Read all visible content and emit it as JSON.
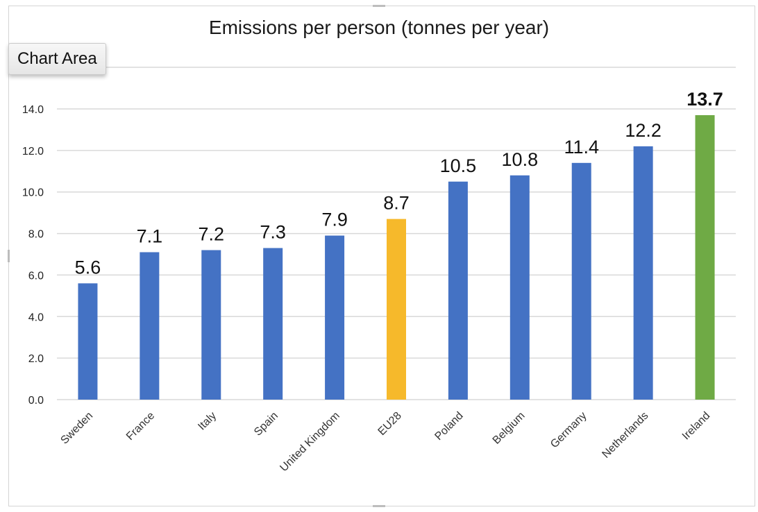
{
  "window": {
    "tooltip": "Chart Area"
  },
  "colors": {
    "default": "#4472C4",
    "eu": "#F6B92B",
    "highlight": "#6FAA45",
    "grid": "#d9d9d9"
  },
  "chart_data": {
    "type": "bar",
    "title": "Emissions per person (tonnes per year)",
    "xlabel": "",
    "ylabel": "",
    "ylim": [
      0,
      14
    ],
    "yticks": [
      "0.0",
      "2.0",
      "4.0",
      "6.0",
      "8.0",
      "10.0",
      "12.0",
      "14.0"
    ],
    "grid": true,
    "categories": [
      "Sweden",
      "France",
      "Italy",
      "Spain",
      "United Kingdom",
      "EU28",
      "Poland",
      "Belgium",
      "Germany",
      "Netherlands",
      "Ireland"
    ],
    "values": [
      5.6,
      7.1,
      7.2,
      7.3,
      7.9,
      8.7,
      10.5,
      10.8,
      11.4,
      12.2,
      13.7
    ],
    "data_labels": [
      "5.6",
      "7.1",
      "7.2",
      "7.3",
      "7.9",
      "8.7",
      "10.5",
      "10.8",
      "11.4",
      "12.2",
      "13.7"
    ],
    "bar_colors": [
      "#4472C4",
      "#4472C4",
      "#4472C4",
      "#4472C4",
      "#4472C4",
      "#F6B92B",
      "#4472C4",
      "#4472C4",
      "#4472C4",
      "#4472C4",
      "#6FAA45"
    ],
    "bold_labels": [
      "13.7"
    ]
  }
}
